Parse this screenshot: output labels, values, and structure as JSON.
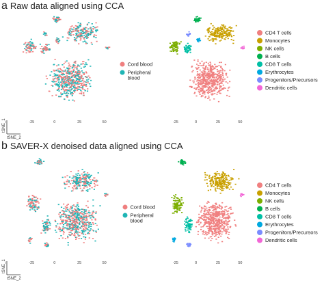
{
  "panel_a": {
    "letter": "a",
    "title": "Raw data aligned using CCA"
  },
  "panel_b": {
    "letter": "b",
    "title": "SAVER-X denoised data aligned using CCA"
  },
  "chart_data": [
    {
      "type": "scatter",
      "panel": "a",
      "subplot": "source",
      "xlabel": "tSNE_2",
      "ylabel": "tSNE_1",
      "xticks": [
        "-25",
        "0",
        "25",
        "50"
      ],
      "legend": {
        "placement": "right",
        "entries": [
          "Cord blood",
          "Peripheral blood"
        ]
      },
      "colors": {
        "Cord blood": "#ef7f7f",
        "Peripheral blood": "#1fb5b5"
      }
    },
    {
      "type": "scatter",
      "panel": "a",
      "subplot": "celltype",
      "xticks": [
        "-25",
        "0",
        "25",
        "50"
      ],
      "legend": {
        "placement": "right",
        "entries": [
          "CD4 T cells",
          "Monocytes",
          "NK cells",
          "B cells",
          "CD8 T cells",
          "Erythrocytes",
          "Progenitors/Precursors",
          "Dendritic cells"
        ]
      },
      "colors": {
        "CD4 T cells": "#f08080",
        "Monocytes": "#c9a000",
        "NK cells": "#7cae00",
        "B cells": "#00b050",
        "CD8 T cells": "#00bfa5",
        "Erythrocytes": "#00a9e0",
        "Progenitors/Precursors": "#7a8cff",
        "Dendritic cells": "#f266d6"
      }
    },
    {
      "type": "scatter",
      "panel": "b",
      "subplot": "source",
      "xlabel": "tSNE_2",
      "ylabel": "tSNE_1",
      "xticks": [
        "-25",
        "0",
        "25",
        "50"
      ],
      "legend": {
        "placement": "right",
        "entries": [
          "Cord blood",
          "Peripheral blood"
        ]
      },
      "colors": {
        "Cord blood": "#ef7f7f",
        "Peripheral blood": "#1fb5b5"
      }
    },
    {
      "type": "scatter",
      "panel": "b",
      "subplot": "celltype",
      "xticks": [
        "-25",
        "0",
        "25",
        "50"
      ],
      "legend": {
        "placement": "right",
        "entries": [
          "CD4 T cells",
          "Monocytes",
          "NK cells",
          "B cells",
          "CD8 T cells",
          "Erythrocytes",
          "Progenitors/Precursors",
          "Dendritic cells"
        ]
      },
      "colors": {
        "CD4 T cells": "#f08080",
        "Monocytes": "#c9a000",
        "NK cells": "#7cae00",
        "B cells": "#00b050",
        "CD8 T cells": "#00bfa5",
        "Erythrocytes": "#00a9e0",
        "Progenitors/Precursors": "#7a8cff",
        "Dendritic cells": "#f266d6"
      }
    }
  ]
}
